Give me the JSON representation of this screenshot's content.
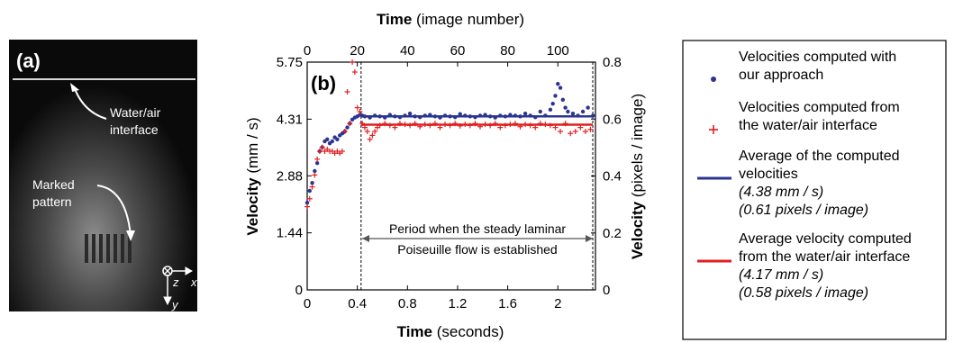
{
  "panel_a": {
    "label": "(a)",
    "annotation_interface": "Water/air\ninterface",
    "annotation_pattern": "Marked\npattern",
    "axis_z": "z",
    "axis_x": "x",
    "axis_y": "y"
  },
  "chart_data": {
    "type": "scatter",
    "panel_label": "(b)",
    "xlabel_bottom_bold": "Time",
    "xlabel_bottom_rest": " (seconds)",
    "xlabel_top_bold": "Time",
    "xlabel_top_rest": " (image number)",
    "ylabel_left_bold": "Velocity",
    "ylabel_left_rest": " (mm / s)",
    "ylabel_right_bold": "Velocity",
    "ylabel_right_rest": " (pixels / image)",
    "xlim": [
      0,
      2.3
    ],
    "ylim_left": [
      0,
      5.75
    ],
    "ylim_right": [
      0,
      0.8
    ],
    "bottom_ticks": [
      "0",
      "0.4",
      "0.8",
      "1.2",
      "1.6",
      "2"
    ],
    "top_ticks": [
      "0",
      "20",
      "40",
      "60",
      "80",
      "100"
    ],
    "left_ticks": [
      "0",
      "1.44",
      "2.88",
      "4.31",
      "5.75"
    ],
    "right_ticks": [
      "0",
      "0.2",
      "0.4",
      "0.6",
      "0.8"
    ],
    "steady_start": 0.43,
    "steady_end": 2.3,
    "annotation_line1": "Period when the steady laminar",
    "annotation_line2": "Poiseuille flow is established",
    "series": [
      {
        "name": "Velocities computed with our approach",
        "marker": "dot",
        "color": "#2b3590",
        "x": [
          0.0,
          0.02,
          0.04,
          0.06,
          0.08,
          0.1,
          0.12,
          0.14,
          0.16,
          0.18,
          0.2,
          0.22,
          0.24,
          0.26,
          0.28,
          0.3,
          0.32,
          0.34,
          0.36,
          0.38,
          0.4,
          0.42,
          0.44,
          0.46,
          0.5,
          0.54,
          0.58,
          0.62,
          0.66,
          0.7,
          0.74,
          0.78,
          0.82,
          0.86,
          0.9,
          0.94,
          0.98,
          1.02,
          1.06,
          1.1,
          1.14,
          1.18,
          1.22,
          1.26,
          1.3,
          1.34,
          1.38,
          1.42,
          1.46,
          1.5,
          1.54,
          1.58,
          1.62,
          1.66,
          1.7,
          1.74,
          1.78,
          1.82,
          1.86,
          1.9,
          1.94,
          1.96,
          1.98,
          2.0,
          2.02,
          2.04,
          2.06,
          2.08,
          2.12,
          2.16,
          2.2,
          2.24,
          2.28
        ],
        "y": [
          2.2,
          2.5,
          2.7,
          3.0,
          3.2,
          3.5,
          3.6,
          3.75,
          3.8,
          3.7,
          3.75,
          3.85,
          3.8,
          3.9,
          3.95,
          4.0,
          4.1,
          4.2,
          4.3,
          4.35,
          4.38,
          4.42,
          4.4,
          4.38,
          4.35,
          4.4,
          4.38,
          4.35,
          4.42,
          4.38,
          4.36,
          4.4,
          4.45,
          4.38,
          4.36,
          4.4,
          4.42,
          4.38,
          4.35,
          4.4,
          4.38,
          4.36,
          4.44,
          4.4,
          4.38,
          4.36,
          4.4,
          4.42,
          4.38,
          4.35,
          4.4,
          4.38,
          4.42,
          4.4,
          4.38,
          4.45,
          4.4,
          4.36,
          4.5,
          4.4,
          4.55,
          4.7,
          4.9,
          5.2,
          5.1,
          4.8,
          4.6,
          4.5,
          4.45,
          4.4,
          4.5,
          4.6,
          4.4
        ]
      },
      {
        "name": "Velocities computed from the water/air interface",
        "marker": "plus",
        "color": "#e02020",
        "x": [
          0.0,
          0.02,
          0.04,
          0.06,
          0.08,
          0.1,
          0.12,
          0.14,
          0.16,
          0.18,
          0.2,
          0.22,
          0.24,
          0.26,
          0.28,
          0.3,
          0.32,
          0.34,
          0.36,
          0.38,
          0.4,
          0.42,
          0.44,
          0.46,
          0.48,
          0.5,
          0.52,
          0.54,
          0.56,
          0.58,
          0.62,
          0.66,
          0.7,
          0.74,
          0.78,
          0.82,
          0.86,
          0.9,
          0.94,
          0.98,
          1.02,
          1.06,
          1.1,
          1.14,
          1.18,
          1.22,
          1.26,
          1.3,
          1.34,
          1.38,
          1.42,
          1.46,
          1.5,
          1.54,
          1.58,
          1.62,
          1.66,
          1.7,
          1.74,
          1.78,
          1.82,
          1.86,
          1.9,
          1.94,
          1.98,
          2.02,
          2.06,
          2.1,
          2.14,
          2.18,
          2.22,
          2.26
        ],
        "y": [
          2.1,
          2.3,
          2.6,
          2.9,
          3.3,
          3.5,
          3.6,
          3.5,
          3.55,
          3.5,
          3.5,
          3.45,
          3.5,
          3.45,
          3.5,
          4.0,
          5.0,
          4.2,
          5.75,
          5.5,
          4.6,
          4.5,
          4.2,
          4.1,
          4.0,
          3.8,
          3.9,
          4.0,
          4.1,
          4.15,
          4.2,
          4.15,
          4.1,
          4.2,
          4.18,
          4.15,
          4.2,
          4.12,
          4.18,
          4.15,
          4.2,
          4.1,
          4.18,
          4.15,
          4.2,
          4.14,
          4.18,
          4.15,
          4.2,
          4.12,
          4.18,
          4.15,
          4.2,
          4.1,
          4.15,
          4.18,
          4.2,
          4.12,
          4.18,
          4.15,
          4.1,
          4.2,
          4.18,
          4.15,
          4.1,
          4.0,
          4.2,
          3.95,
          4.0,
          4.1,
          4.0,
          4.05
        ]
      }
    ],
    "averages": [
      {
        "name": "Average of the computed velocities",
        "value": 4.38,
        "color": "#2b3590"
      },
      {
        "name": "Average velocity computed from the water/air interface",
        "value": 4.17,
        "color": "#e02020"
      }
    ]
  },
  "legend": {
    "items": [
      {
        "lines": [
          "Velocities computed with",
          "our approach"
        ],
        "italic": []
      },
      {
        "lines": [
          "Velocities computed from",
          "the water/air interface"
        ],
        "italic": []
      },
      {
        "lines": [
          "Average of the computed",
          "velocities"
        ],
        "italic": [
          "(4.38 mm / s)",
          "(0.61 pixels / image)"
        ]
      },
      {
        "lines": [
          "Average velocity computed",
          "from the water/air interface"
        ],
        "italic": [
          "(4.17 mm / s)",
          "(0.58 pixels / image)"
        ]
      }
    ]
  }
}
